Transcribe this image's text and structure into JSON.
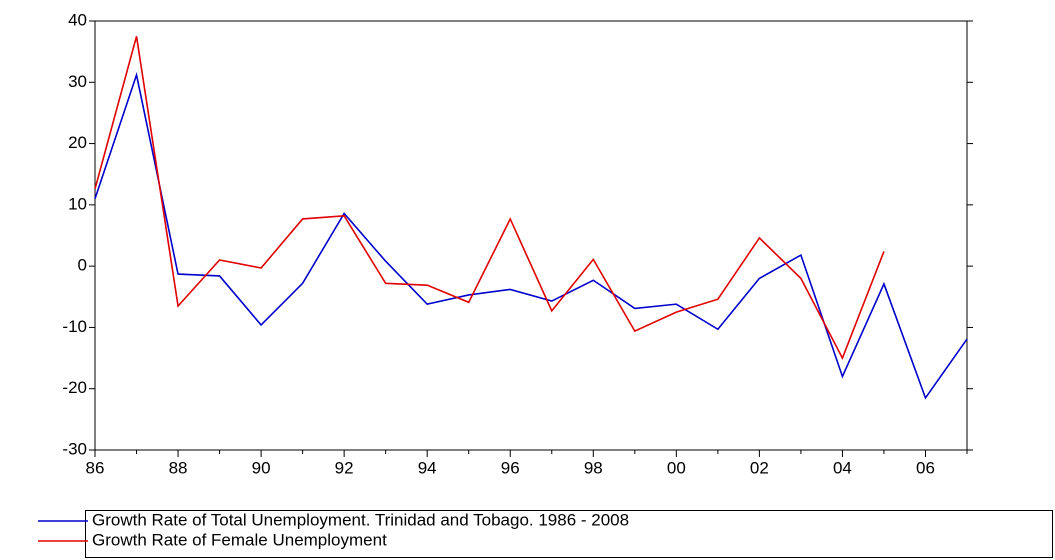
{
  "chart_data": {
    "type": "line",
    "categories": [
      "86",
      null,
      "88",
      null,
      "90",
      null,
      "92",
      null,
      "94",
      null,
      "96",
      null,
      "98",
      null,
      "00",
      null,
      "02",
      null,
      "04",
      null,
      "06",
      null
    ],
    "series": [
      {
        "name": "Growth Rate of Total Unemployment. Trinidad and Tobago. 1986 - 2008",
        "color": "#0000cc",
        "values": [
          11,
          31.2,
          -1.3,
          -1.6,
          -9.6,
          -2.8,
          8.6,
          0.8,
          -6.2,
          -4.7,
          -3.8,
          -5.7,
          -2.3,
          -6.9,
          -6.2,
          -10.3,
          -2.0,
          1.8,
          -18.0,
          -2.9,
          -21.5,
          -11.9
        ]
      },
      {
        "name": "Growth Rate of Female Unemployment",
        "color": "#e00000",
        "values": [
          12.6,
          37.5,
          -6.5,
          1.0,
          -0.3,
          7.7,
          8.2,
          -2.8,
          -3.1,
          -5.9,
          7.7,
          -7.3,
          1.1,
          -10.6,
          -7.5,
          -5.4,
          4.6,
          -2.0,
          -15.0,
          2.4,
          null,
          null
        ]
      }
    ],
    "ylim": [
      -30,
      40
    ],
    "yticks": [
      -30,
      -20,
      -10,
      0,
      10,
      20,
      30,
      40
    ],
    "grid": false
  }
}
